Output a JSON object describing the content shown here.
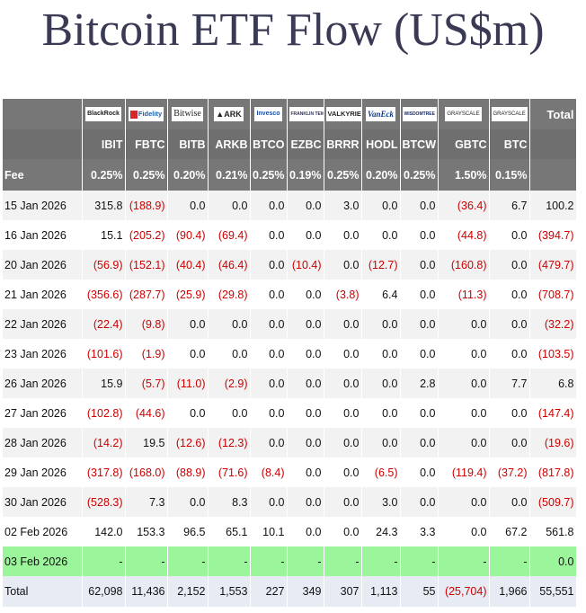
{
  "title": "Bitcoin ETF Flow (US$m)",
  "logos": {
    "blackrock": "BlackRock",
    "fidelity": "Fidelity",
    "bitwise": "Bitwise",
    "ark": "ARK",
    "invesco": "Invesco",
    "franklin": "FRANKLIN TEMPLETON",
    "valkyrie": "VALKYRIE",
    "vaneck": "VanEck",
    "wisdomtree": "WISDOMTREE",
    "grayscale": "GRAYSCALE",
    "grayscale2": "GRAYSCALE",
    "total": "Total"
  },
  "tickers": [
    "IBIT",
    "FBTC",
    "BITB",
    "ARKB",
    "BTCO",
    "EZBC",
    "BRRR",
    "HODL",
    "BTCW",
    "GBTC",
    "BTC"
  ],
  "fee_label": "Fee",
  "fees": [
    "0.25%",
    "0.25%",
    "0.20%",
    "0.21%",
    "0.25%",
    "0.19%",
    "0.25%",
    "0.20%",
    "0.25%",
    "1.50%",
    "0.15%"
  ],
  "rows": [
    {
      "date": "15 Jan 2026",
      "values": [
        "315.8",
        "(188.9)",
        "0.0",
        "0.0",
        "0.0",
        "0.0",
        "3.0",
        "0.0",
        "0.0",
        "(36.4)",
        "6.7"
      ],
      "total": "100.2"
    },
    {
      "date": "16 Jan 2026",
      "values": [
        "15.1",
        "(205.2)",
        "(90.4)",
        "(69.4)",
        "0.0",
        "0.0",
        "0.0",
        "0.0",
        "0.0",
        "(44.8)",
        "0.0"
      ],
      "total": "(394.7)"
    },
    {
      "date": "20 Jan 2026",
      "values": [
        "(56.9)",
        "(152.1)",
        "(40.4)",
        "(46.4)",
        "0.0",
        "(10.4)",
        "0.0",
        "(12.7)",
        "0.0",
        "(160.8)",
        "0.0"
      ],
      "total": "(479.7)"
    },
    {
      "date": "21 Jan 2026",
      "values": [
        "(356.6)",
        "(287.7)",
        "(25.9)",
        "(29.8)",
        "0.0",
        "0.0",
        "(3.8)",
        "6.4",
        "0.0",
        "(11.3)",
        "0.0"
      ],
      "total": "(708.7)"
    },
    {
      "date": "22 Jan 2026",
      "values": [
        "(22.4)",
        "(9.8)",
        "0.0",
        "0.0",
        "0.0",
        "0.0",
        "0.0",
        "0.0",
        "0.0",
        "0.0",
        "0.0"
      ],
      "total": "(32.2)"
    },
    {
      "date": "23 Jan 2026",
      "values": [
        "(101.6)",
        "(1.9)",
        "0.0",
        "0.0",
        "0.0",
        "0.0",
        "0.0",
        "0.0",
        "0.0",
        "0.0",
        "0.0"
      ],
      "total": "(103.5)"
    },
    {
      "date": "26 Jan 2026",
      "values": [
        "15.9",
        "(5.7)",
        "(11.0)",
        "(2.9)",
        "0.0",
        "0.0",
        "0.0",
        "0.0",
        "2.8",
        "0.0",
        "7.7"
      ],
      "total": "6.8"
    },
    {
      "date": "27 Jan 2026",
      "values": [
        "(102.8)",
        "(44.6)",
        "0.0",
        "0.0",
        "0.0",
        "0.0",
        "0.0",
        "0.0",
        "0.0",
        "0.0",
        "0.0"
      ],
      "total": "(147.4)"
    },
    {
      "date": "28 Jan 2026",
      "values": [
        "(14.2)",
        "19.5",
        "(12.6)",
        "(12.3)",
        "0.0",
        "0.0",
        "0.0",
        "0.0",
        "0.0",
        "0.0",
        "0.0"
      ],
      "total": "(19.6)"
    },
    {
      "date": "29 Jan 2026",
      "values": [
        "(317.8)",
        "(168.0)",
        "(88.9)",
        "(71.6)",
        "(8.4)",
        "0.0",
        "0.0",
        "(6.5)",
        "0.0",
        "(119.4)",
        "(37.2)"
      ],
      "total": "(817.8)"
    },
    {
      "date": "30 Jan 2026",
      "values": [
        "(528.3)",
        "7.3",
        "0.0",
        "8.3",
        "0.0",
        "0.0",
        "0.0",
        "3.0",
        "0.0",
        "0.0",
        "0.0"
      ],
      "total": "(509.7)"
    },
    {
      "date": "02 Feb 2026",
      "values": [
        "142.0",
        "153.3",
        "96.5",
        "65.1",
        "10.1",
        "0.0",
        "0.0",
        "24.3",
        "3.3",
        "0.0",
        "67.2"
      ],
      "total": "561.8"
    },
    {
      "date": "03 Feb 2026",
      "values": [
        "-",
        "-",
        "-",
        "-",
        "-",
        "-",
        "-",
        "-",
        "-",
        "-",
        "-"
      ],
      "total": "0.0",
      "pending": true
    }
  ],
  "totals": {
    "label": "Total",
    "values": [
      "62,098",
      "11,436",
      "2,152",
      "1,553",
      "227",
      "349",
      "307",
      "1,113",
      "55",
      "(25,704)",
      "1,966"
    ],
    "total": "55,551"
  },
  "colors": {
    "header_bg": "#777777",
    "negative": "#cc0000",
    "pending_row": "#9bf59b",
    "total_row": "#e6ebf4",
    "title": "#3a3a55"
  }
}
